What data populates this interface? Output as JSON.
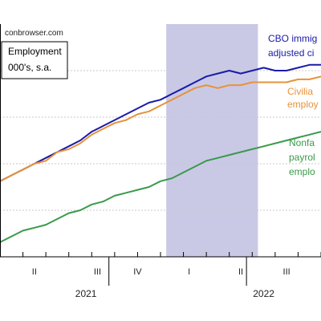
{
  "source_text": "conbrowser.com",
  "legend_box": {
    "line1": "Employment",
    "line2": "000's, s.a."
  },
  "annotations": {
    "cbo": {
      "line1": "CBO immig",
      "line2": "adjusted ci"
    },
    "civilian": {
      "line1": "Civilia",
      "line2": "employ"
    },
    "nonfarm": {
      "line1": "Nonfa",
      "line2": "payrol",
      "line3": "emplo"
    }
  },
  "chart_data": {
    "type": "line",
    "title": "",
    "xlabel": "",
    "ylabel": "",
    "x_ticks": [
      "II",
      "III",
      "IV",
      "I",
      "II",
      "III"
    ],
    "x_years": [
      "2021",
      "2022"
    ],
    "grid": true,
    "shaded_region": {
      "start": 14.5,
      "end": 22.5,
      "color": "#c9c9e6"
    },
    "series": [
      {
        "name": "CBO immigration adjusted civilian employment",
        "color": "#1a1aa8",
        "x": [
          0,
          1,
          2,
          3,
          4,
          5,
          6,
          7,
          8,
          9,
          10,
          11,
          12,
          13,
          14,
          15,
          16,
          17,
          18,
          19,
          20,
          21,
          22,
          23,
          24,
          25,
          26,
          27,
          28
        ],
        "y": [
          46,
          48,
          50,
          52,
          54,
          56,
          58,
          60,
          63,
          65,
          67,
          69,
          71,
          73,
          74,
          76,
          78,
          80,
          82,
          83,
          84,
          83,
          84,
          85,
          84,
          84,
          85,
          86,
          86
        ]
      },
      {
        "name": "Civilian employment",
        "color": "#e8923a",
        "x": [
          0,
          1,
          2,
          3,
          4,
          5,
          6,
          7,
          8,
          9,
          10,
          11,
          12,
          13,
          14,
          15,
          16,
          17,
          18,
          19,
          20,
          21,
          22,
          23,
          24,
          25,
          26,
          27,
          28
        ],
        "y": [
          46,
          48,
          50,
          52,
          53,
          56,
          57,
          59,
          62,
          64,
          66,
          67,
          69,
          70,
          72,
          74,
          76,
          78,
          79,
          78,
          79,
          79,
          80,
          80,
          80,
          80,
          81,
          81,
          82
        ]
      },
      {
        "name": "Nonfarm payroll employment",
        "color": "#3a9a4a",
        "x": [
          0,
          1,
          2,
          3,
          4,
          5,
          6,
          7,
          8,
          9,
          10,
          11,
          12,
          13,
          14,
          15,
          16,
          17,
          18,
          19,
          20,
          21,
          22,
          23,
          24,
          25,
          26,
          27,
          28
        ],
        "y": [
          25,
          27,
          29,
          30,
          31,
          33,
          35,
          36,
          38,
          39,
          41,
          42,
          43,
          44,
          46,
          47,
          49,
          51,
          53,
          54,
          55,
          56,
          57,
          58,
          59,
          60,
          61,
          62,
          63
        ]
      }
    ],
    "xlim": [
      0,
      28
    ],
    "ylim": [
      20,
      100
    ]
  }
}
